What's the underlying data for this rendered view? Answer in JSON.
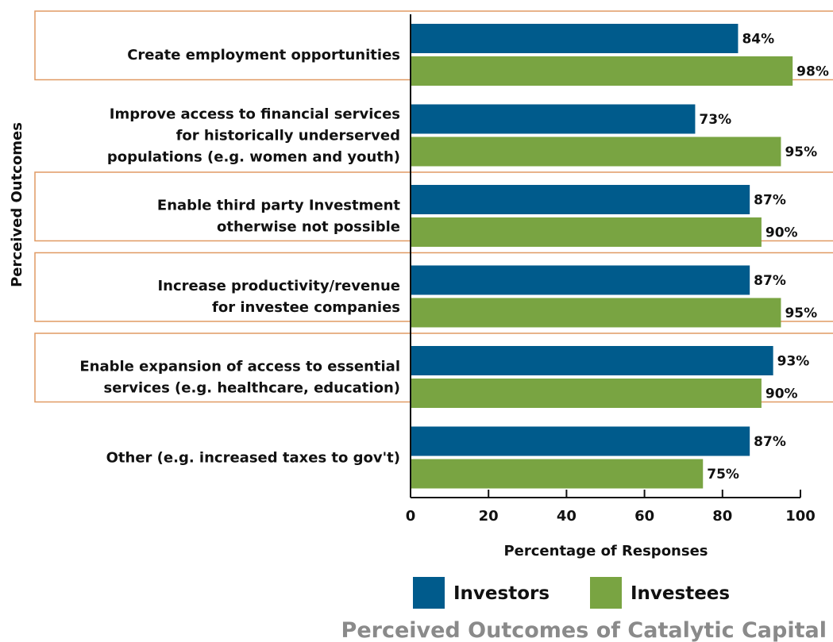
{
  "chart_data": {
    "type": "bar",
    "orientation": "horizontal",
    "title": "Perceived Outcomes of Catalytic Capital",
    "xlabel": "Percentage of Responses",
    "ylabel": "Perceived Outcomes",
    "xlim": [
      0,
      100
    ],
    "xticks": [
      "0",
      "20",
      "40",
      "60",
      "80",
      "100"
    ],
    "categories": [
      [
        "Create employment opportunities"
      ],
      [
        "Improve access to financial services",
        "for historically underserved",
        "populations (e.g. women and youth)"
      ],
      [
        "Enable third party Investment",
        "otherwise not possible"
      ],
      [
        "Increase productivity/revenue",
        "for investee companies"
      ],
      [
        "Enable expansion of access to essential",
        "services (e.g. healthcare, education)"
      ],
      [
        "Other (e.g. increased taxes to gov't)"
      ]
    ],
    "series": [
      {
        "name": "Investors",
        "color": "#005b8c",
        "values": [
          84,
          73,
          87,
          87,
          93,
          87
        ],
        "labels": [
          "84%",
          "73%",
          "87%",
          "87%",
          "93%",
          "87%"
        ]
      },
      {
        "name": "Investees",
        "color": "#79a442",
        "values": [
          98,
          95,
          90,
          95,
          90,
          75
        ],
        "labels": [
          "98%",
          "95%",
          "90%",
          "95%",
          "90%",
          "75%"
        ]
      }
    ],
    "boxed_categories": [
      true,
      false,
      true,
      true,
      true,
      false
    ],
    "box_color": "#e09a63",
    "legend": {
      "position": "bottom-center",
      "entries": [
        "Investors",
        "Investees"
      ]
    }
  }
}
